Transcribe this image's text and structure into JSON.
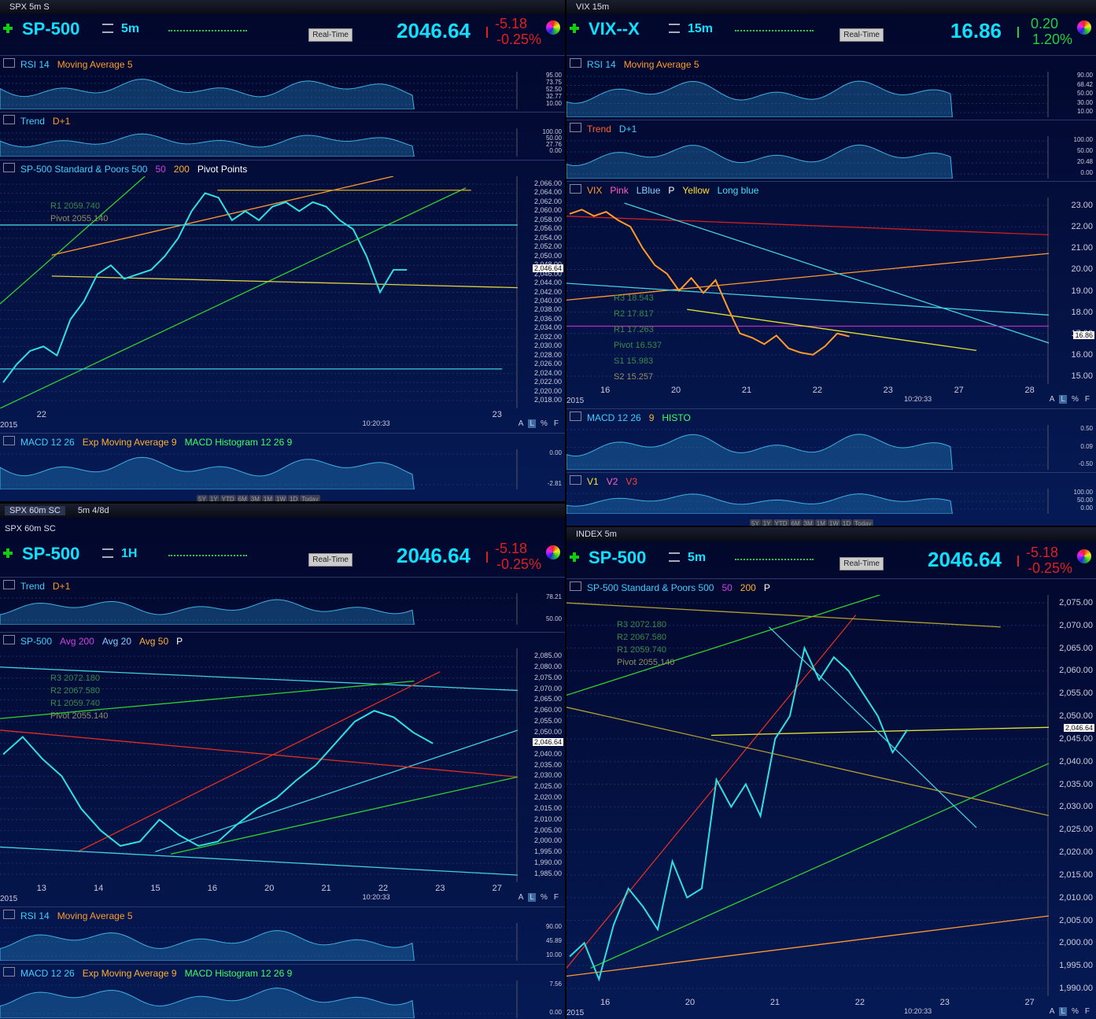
{
  "panels": [
    {
      "tab": "SPX 5m S",
      "symbol": "SP-500",
      "interval": "5m",
      "realtime": "Real-Time",
      "price": "2046.64",
      "change": "-5.18",
      "change_pct": "-0.25%",
      "change_dir": "down",
      "panes": [
        {
          "kind": "ind",
          "labels": [
            "RSI 14",
            "Moving Average 5"
          ],
          "label_colors": [
            "#3bd0ff",
            "#ff9a2a"
          ],
          "ticks": [
            "95.00",
            "73.75",
            "52.50",
            "32.77",
            "10.00"
          ]
        },
        {
          "kind": "ind",
          "labels": [
            "Trend",
            "D+1"
          ],
          "label_colors": [
            "#3bd0ff",
            "#ff9a2a"
          ],
          "ticks": [
            "100.00",
            "50.00",
            "27.76",
            "0.00"
          ]
        },
        {
          "kind": "main",
          "labels": [
            "SP-500 Standard & Poors 500",
            "50",
            "200",
            "Pivot Points"
          ],
          "label_colors": [
            "#3bd0ff",
            "#d040e0",
            "#ffb030",
            "#ffffff"
          ],
          "ticks": [
            "2,066.00",
            "2,064.00",
            "2,062.00",
            "2,060.00",
            "2,058.00",
            "2,056.00",
            "2,054.00",
            "2,052.00",
            "2,050.00",
            "2,048.00",
            "2,046.00",
            "2,044.00",
            "2,042.00",
            "2,040.00",
            "2,038.00",
            "2,036.00",
            "2,034.00",
            "2,032.00",
            "2,030.00",
            "2,028.00",
            "2,026.00",
            "2,024.00",
            "2,022.00",
            "2,020.00",
            "2,018.00"
          ],
          "ylim": [
            2018,
            2066
          ],
          "values": [
            2022,
            2026,
            2029,
            2030,
            2028,
            2036,
            2040,
            2046,
            2048,
            2045,
            2046,
            2047,
            2050,
            2054,
            2060,
            2064,
            2063,
            2058,
            2060,
            2058,
            2061,
            2062,
            2060,
            2062,
            2061,
            2058,
            2056,
            2050,
            2042,
            2047,
            2047
          ],
          "price_tag": "2,046.64",
          "pivots": [
            "R1 2059.740",
            "Pivot 2055.140"
          ],
          "x_labels": [
            "22",
            "23"
          ],
          "year": "2015",
          "time": "10:20:33",
          "footer": [
            "A",
            "L",
            "%",
            "F"
          ]
        },
        {
          "kind": "ind",
          "labels": [
            "MACD 12 26",
            "Exp Moving Average 9",
            "MACD Histogram 12 26 9"
          ],
          "label_colors": [
            "#3bd0ff",
            "#ffb030",
            "#40ff60"
          ],
          "ticks": [
            "0.00",
            "-2.81"
          ],
          "range_buttons": [
            "5Y",
            "1Y",
            "YTD",
            "6M",
            "3M",
            "1M",
            "1W",
            "1D",
            "Today"
          ]
        }
      ]
    },
    {
      "tab": "VIX 15m",
      "symbol": "VIX--X",
      "interval": "15m",
      "realtime": "Real-Time",
      "price": "16.86",
      "change": "0.20",
      "change_pct": "1.20%",
      "change_dir": "up",
      "panes": [
        {
          "kind": "ind",
          "labels": [
            "RSI 14",
            "Moving Average 5"
          ],
          "label_colors": [
            "#3bd0ff",
            "#ff9a2a"
          ],
          "ticks": [
            "90.00",
            "68.42",
            "50.00",
            "30.00",
            "10.00"
          ]
        },
        {
          "kind": "ind",
          "labels": [
            "Trend",
            "D+1"
          ],
          "label_colors": [
            "#ff6030",
            "#3bd0ff"
          ],
          "ticks": [
            "100.00",
            "50.00",
            "20.48",
            "0.00"
          ]
        },
        {
          "kind": "main",
          "labels": [
            "VIX",
            "Pink",
            "LBlue",
            "P",
            "Yellow",
            "Long blue"
          ],
          "label_colors": [
            "#ff9a2a",
            "#ff60c0",
            "#80d0ff",
            "#ffffff",
            "#ffe030",
            "#40e0ff"
          ],
          "ticks": [
            "23.00",
            "22.00",
            "21.00",
            "20.00",
            "19.00",
            "18.00",
            "17.00",
            "16.00",
            "15.00"
          ],
          "ylim": [
            15,
            23
          ],
          "values": [
            22.6,
            22.8,
            22.5,
            22.7,
            22.3,
            22.0,
            21.0,
            20.2,
            19.8,
            19.0,
            19.6,
            18.9,
            19.5,
            18.2,
            17.0,
            16.8,
            16.5,
            16.9,
            16.3,
            16.1,
            16.0,
            16.4,
            17.0,
            16.86
          ],
          "price_tag": "16.86",
          "pivots": [
            "R3 18.543",
            "R2 17.817",
            "R1 17.263",
            "Pivot 16.537",
            "S1 15.983",
            "S2 15.257"
          ],
          "x_labels": [
            "16",
            "20",
            "21",
            "22",
            "23",
            "27",
            "28"
          ],
          "year": "2015",
          "time": "10:20:33",
          "footer": [
            "A",
            "L",
            "%",
            "F"
          ]
        },
        {
          "kind": "ind",
          "labels": [
            "MACD 12 26",
            "9",
            "HISTO"
          ],
          "label_colors": [
            "#3bd0ff",
            "#ffb030",
            "#40ff60"
          ],
          "ticks": [
            "0.50",
            "0.09",
            "-0.50"
          ]
        },
        {
          "kind": "ind",
          "labels": [
            "V1",
            "V2",
            "V3"
          ],
          "label_colors": [
            "#ffe030",
            "#ff60c0",
            "#ff4030"
          ],
          "ticks": [
            "100.00",
            "50.00",
            "0.00"
          ],
          "range_buttons": [
            "5Y",
            "1Y",
            "YTD",
            "6M",
            "3M",
            "1M",
            "1W",
            "1D",
            "Today"
          ]
        }
      ]
    },
    {
      "tabs": [
        "SPX 60m SC",
        "5m 4/8d"
      ],
      "tab": "SPX 60m SC",
      "symbol": "SP-500",
      "interval": "1H",
      "realtime": "Real-Time",
      "price": "2046.64",
      "change": "-5.18",
      "change_pct": "-0.25%",
      "change_dir": "down",
      "panes": [
        {
          "kind": "ind",
          "labels": [
            "Trend",
            "D+1"
          ],
          "label_colors": [
            "#3bd0ff",
            "#ff9a2a"
          ],
          "ticks": [
            "78.21",
            "50.00"
          ]
        },
        {
          "kind": "main",
          "labels": [
            "SP-500",
            "Avg 200",
            "Avg 20",
            "Avg 50",
            "P"
          ],
          "label_colors": [
            "#3bd0ff",
            "#d040e0",
            "#80d0ff",
            "#ffb030",
            "#ffffff"
          ],
          "ticks": [
            "2,085.00",
            "2,080.00",
            "2,075.00",
            "2,070.00",
            "2,065.00",
            "2,060.00",
            "2,055.00",
            "2,050.00",
            "2,045.00",
            "2,040.00",
            "2,035.00",
            "2,030.00",
            "2,025.00",
            "2,020.00",
            "2,015.00",
            "2,010.00",
            "2,005.00",
            "2,000.00",
            "1,995.00",
            "1,990.00",
            "1,985.00"
          ],
          "ylim": [
            1985,
            2085
          ],
          "values": [
            2040,
            2048,
            2038,
            2030,
            2015,
            2005,
            1998,
            2000,
            2010,
            2003,
            1998,
            2000,
            2008,
            2015,
            2020,
            2028,
            2035,
            2045,
            2055,
            2060,
            2057,
            2050,
            2045
          ],
          "price_tag": "2,046.64",
          "pivots": [
            "R3 2072.180",
            "R2 2067.580",
            "R1 2059.740",
            "Pivot 2055.140"
          ],
          "x_labels": [
            "13",
            "14",
            "15",
            "16",
            "20",
            "21",
            "22",
            "23",
            "27"
          ],
          "year": "2015",
          "time": "10:20:33",
          "footer": [
            "A",
            "L",
            "%",
            "F"
          ]
        },
        {
          "kind": "ind",
          "labels": [
            "RSI 14",
            "Moving Average 5"
          ],
          "label_colors": [
            "#3bd0ff",
            "#ff9a2a"
          ],
          "ticks": [
            "90.00",
            "45.89",
            "10.00"
          ]
        },
        {
          "kind": "ind",
          "labels": [
            "MACD 12 26",
            "Exp Moving Average 9",
            "MACD Histogram 12 26 9"
          ],
          "label_colors": [
            "#3bd0ff",
            "#ffb030",
            "#40ff60"
          ],
          "ticks": [
            "7.56",
            "0.00"
          ]
        }
      ]
    },
    {
      "tab": "INDEX 5m",
      "symbol": "SP-500",
      "interval": "5m",
      "realtime": "Real-Time",
      "price": "2046.64",
      "change": "-5.18",
      "change_pct": "-0.25%",
      "change_dir": "down",
      "panes": [
        {
          "kind": "main",
          "labels": [
            "SP-500 Standard & Poors 500",
            "50",
            "200",
            "P"
          ],
          "label_colors": [
            "#3bd0ff",
            "#d040e0",
            "#ffb030",
            "#ffffff"
          ],
          "ticks": [
            "2,075.00",
            "2,070.00",
            "2,065.00",
            "2,060.00",
            "2,055.00",
            "2,050.00",
            "2,045.00",
            "2,040.00",
            "2,035.00",
            "2,030.00",
            "2,025.00",
            "2,020.00",
            "2,015.00",
            "2,010.00",
            "2,005.00",
            "2,000.00",
            "1,995.00",
            "1,990.00"
          ],
          "ylim": [
            1990,
            2075
          ],
          "values": [
            1997,
            2000,
            1992,
            2004,
            2012,
            2008,
            2003,
            2018,
            2010,
            2012,
            2036,
            2030,
            2035,
            2028,
            2045,
            2050,
            2065,
            2058,
            2063,
            2060,
            2055,
            2050,
            2042,
            2047
          ],
          "price_tag": "2,046.64",
          "pivots": [
            "R3 2072.180",
            "R2 2067.580",
            "R1 2059.740",
            "Pivot 2055.140"
          ],
          "x_labels": [
            "16",
            "20",
            "21",
            "22",
            "23",
            "27"
          ],
          "year": "2015",
          "time": "10:20:33",
          "footer": [
            "A",
            "L",
            "%",
            "F"
          ]
        }
      ]
    }
  ]
}
